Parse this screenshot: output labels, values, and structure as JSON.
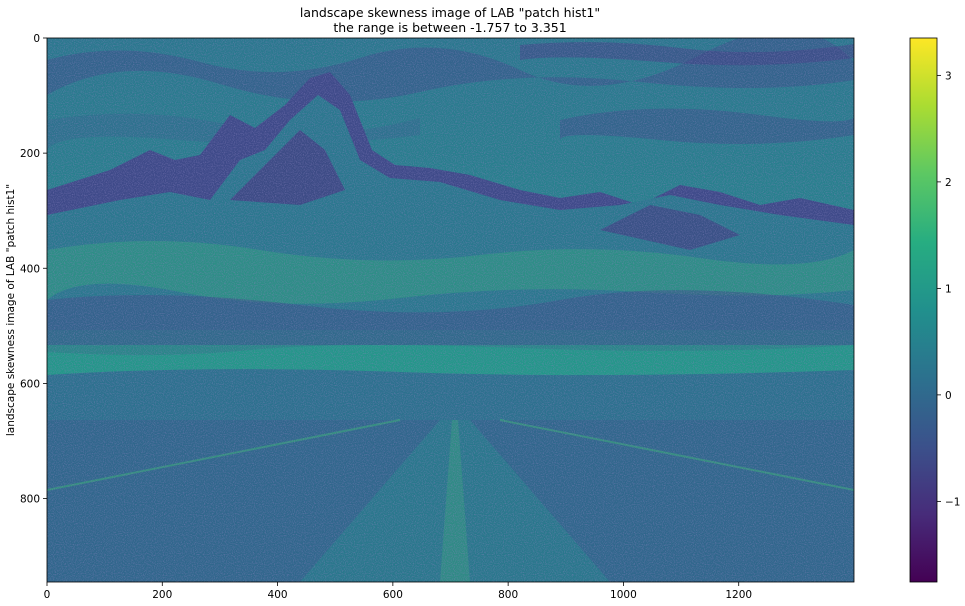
{
  "chart_data": {
    "type": "heatmap",
    "title": "landscape skewness image of LAB \"patch hist1\"",
    "subtitle": "the range is between -1.757 to  3.351",
    "xlabel": "",
    "ylabel": "landscape skewness image of LAB \"patch hist1\"",
    "xlim": [
      0,
      1400
    ],
    "ylim": [
      945,
      0
    ],
    "xticks": [
      0,
      200,
      400,
      600,
      800,
      1000,
      1200
    ],
    "yticks": [
      0,
      200,
      400,
      600,
      800
    ],
    "colormap": "viridis",
    "colorbar": {
      "range": [
        -1.757,
        3.351
      ],
      "ticks": [
        -1,
        0,
        1,
        2,
        3
      ],
      "tick_labels": [
        "−1",
        "0",
        "1",
        "2",
        "3"
      ]
    },
    "grid": false
  },
  "colors": {
    "viridis": [
      "#440154",
      "#472c7a",
      "#3b518b",
      "#2c718e",
      "#21908d",
      "#27ad81",
      "#5cc863",
      "#aadc32",
      "#fde725"
    ],
    "image_base": "#26828e",
    "image_low": "#3e4a89",
    "image_lowest": "#453781",
    "image_high": "#35b779"
  }
}
